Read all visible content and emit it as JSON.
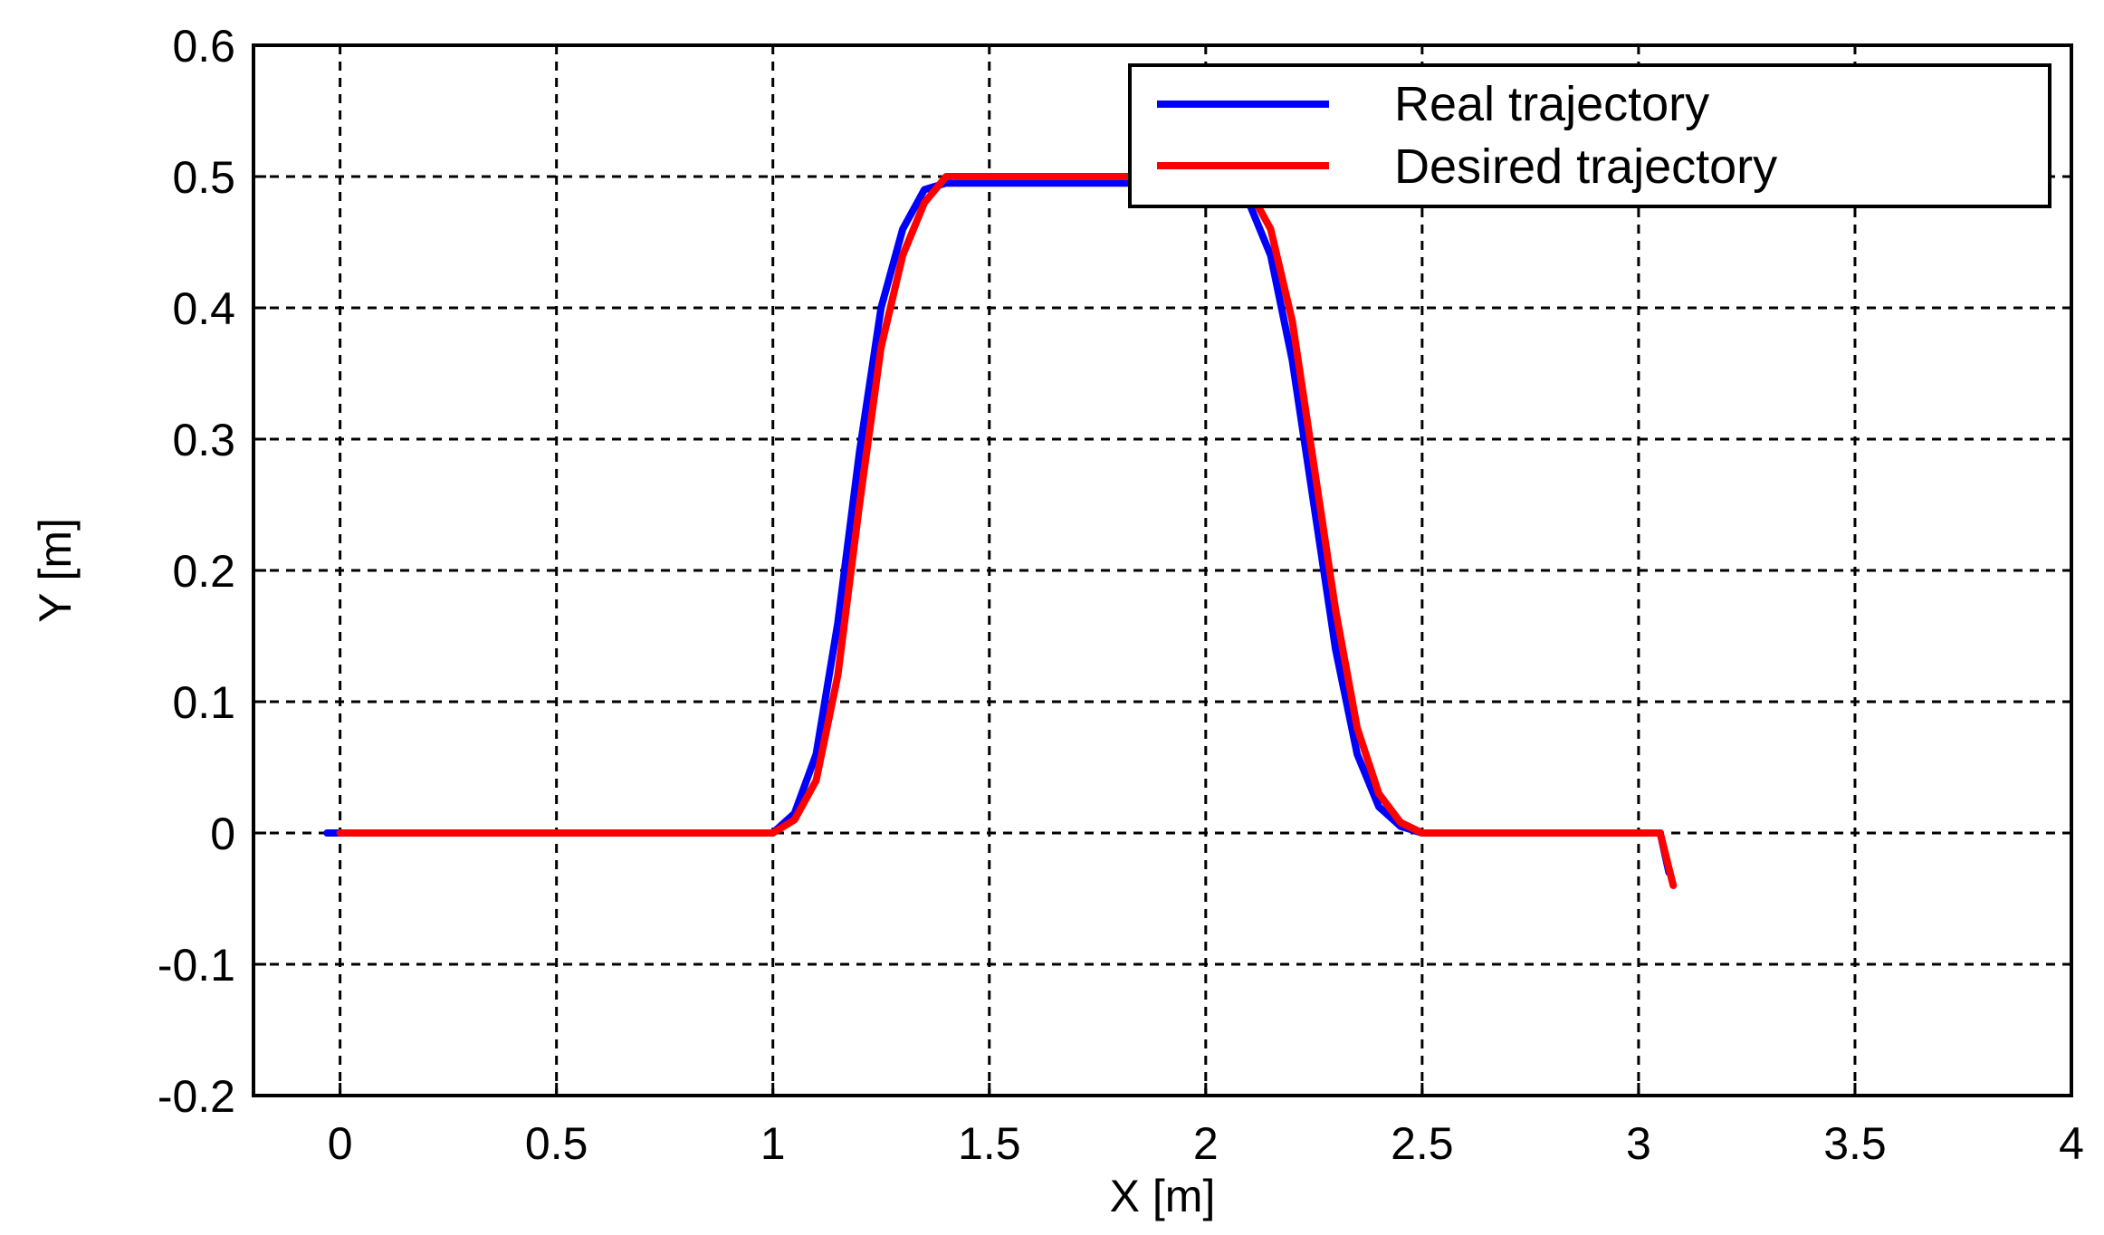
{
  "chart_data": {
    "type": "line",
    "xlabel": "X [m]",
    "ylabel": "Y [m]",
    "xlim": [
      -0.2,
      4
    ],
    "ylim": [
      -0.2,
      0.6
    ],
    "xticks": [
      0,
      0.5,
      1,
      1.5,
      2,
      2.5,
      3,
      3.5,
      4
    ],
    "xtick_labels": [
      "0",
      "0.5",
      "1",
      "1.5",
      "2",
      "2.5",
      "3",
      "3.5",
      "4"
    ],
    "yticks": [
      -0.2,
      -0.1,
      0,
      0.1,
      0.2,
      0.3,
      0.4,
      0.5,
      0.6
    ],
    "ytick_labels": [
      "-0.2",
      "-0.1",
      "0",
      "0.1",
      "0.2",
      "0.3",
      "0.4",
      "0.5",
      "0.6"
    ],
    "grid": true,
    "legend_position": "top-right",
    "series": [
      {
        "name": "Real trajectory",
        "color": "#0000ff",
        "x": [
          -0.03,
          0,
          0.5,
          1.0,
          1.05,
          1.1,
          1.15,
          1.2,
          1.25,
          1.3,
          1.35,
          1.4,
          1.45,
          1.5,
          1.7,
          1.9,
          2.0,
          2.1,
          2.15,
          2.2,
          2.25,
          2.3,
          2.35,
          2.4,
          2.45,
          2.5,
          2.8,
          3.05,
          3.07
        ],
        "y": [
          0,
          0,
          0,
          0,
          0.015,
          0.06,
          0.16,
          0.29,
          0.4,
          0.46,
          0.49,
          0.495,
          0.495,
          0.495,
          0.495,
          0.495,
          0.495,
          0.48,
          0.44,
          0.36,
          0.25,
          0.14,
          0.06,
          0.02,
          0.005,
          0,
          0,
          0,
          -0.03
        ]
      },
      {
        "name": "Desired trajectory",
        "color": "#ff0000",
        "x": [
          0,
          0.5,
          1.0,
          1.05,
          1.1,
          1.15,
          1.2,
          1.25,
          1.3,
          1.35,
          1.4,
          1.45,
          1.5,
          1.7,
          1.9,
          2.0,
          2.1,
          2.15,
          2.2,
          2.25,
          2.3,
          2.35,
          2.4,
          2.45,
          2.5,
          2.8,
          3.05,
          3.08
        ],
        "y": [
          0,
          0,
          0,
          0.01,
          0.04,
          0.12,
          0.25,
          0.37,
          0.44,
          0.48,
          0.5,
          0.5,
          0.5,
          0.5,
          0.5,
          0.5,
          0.49,
          0.46,
          0.39,
          0.28,
          0.17,
          0.08,
          0.03,
          0.008,
          0,
          0,
          0,
          -0.04
        ]
      }
    ]
  }
}
